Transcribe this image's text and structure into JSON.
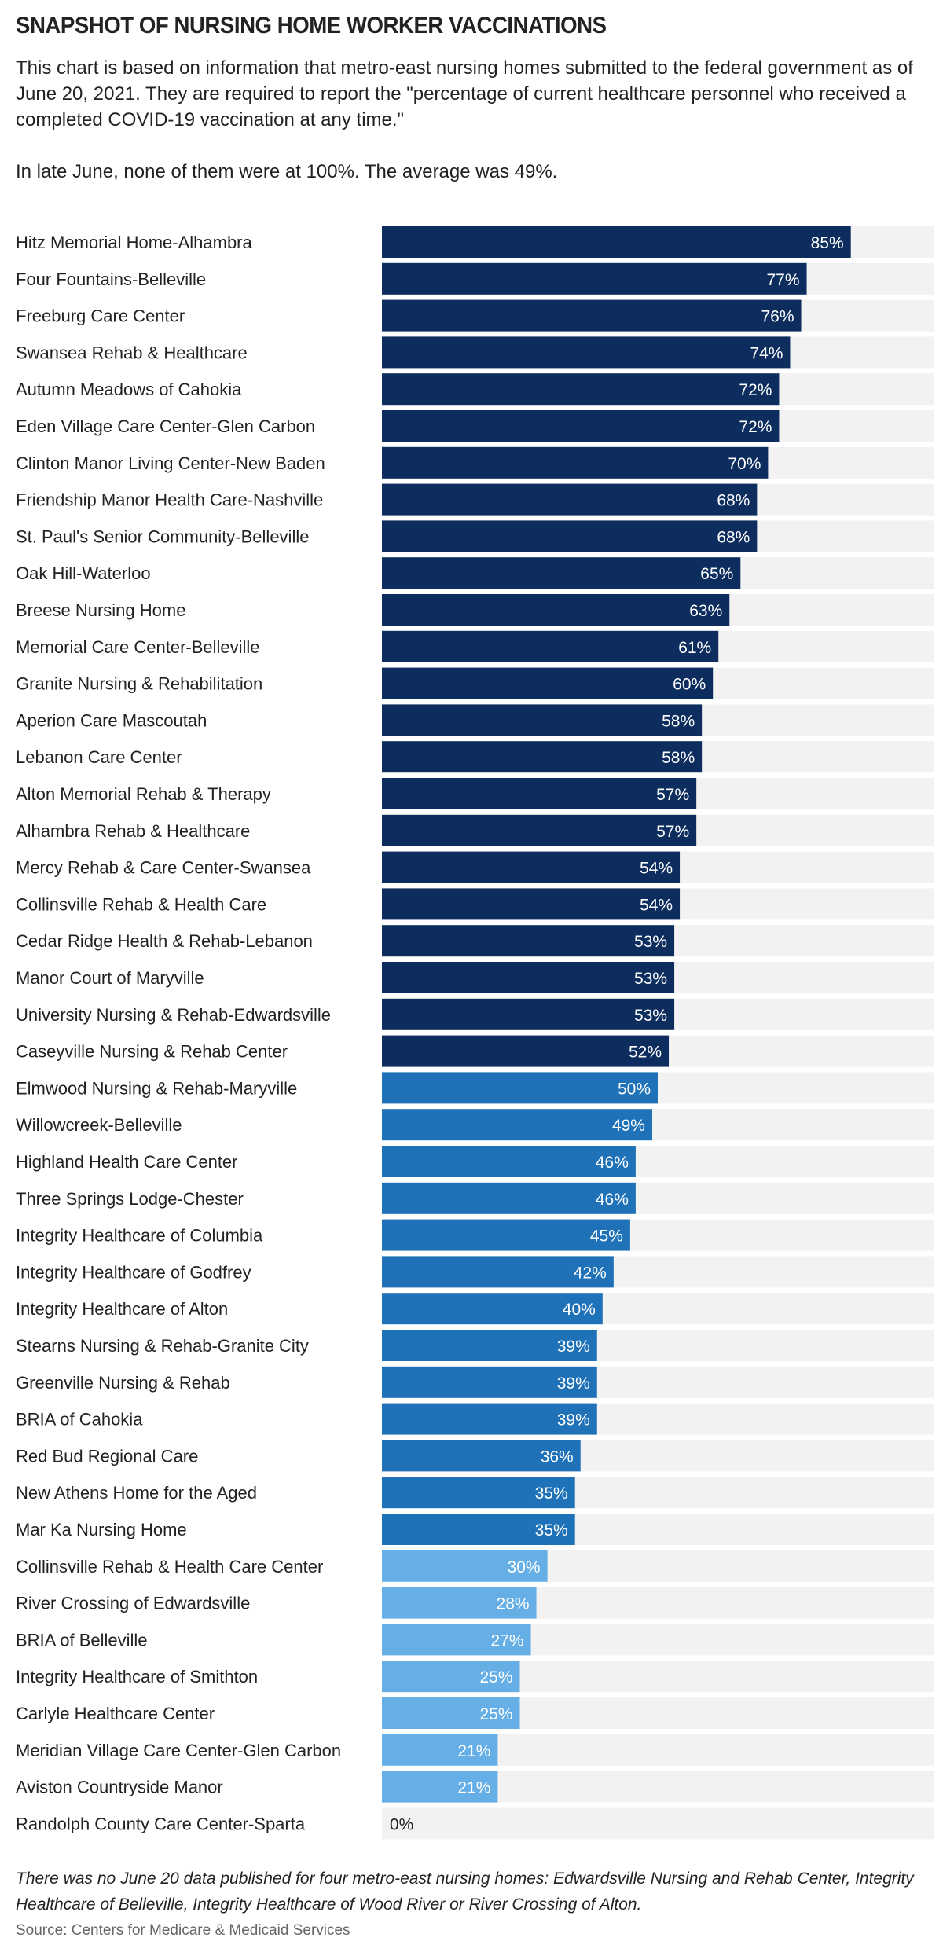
{
  "header": {
    "title": "SNAPSHOT OF NURSING HOME WORKER VACCINATIONS",
    "subtitle_p1": "This chart is based on information that metro-east nursing homes submitted to the federal government as of June 20, 2021. They are required to report the \"percentage of current healthcare personnel who received a completed COVID-19 vaccination at any time.\"",
    "subtitle_p2": "In late June, none of them were at 100%. The average was 49%."
  },
  "footer": {
    "note": "There was no June 20 data published for four metro-east nursing homes: Edwardsville Nursing and Rehab Center, Integrity Healthcare of Belleville, Integrity Healthcare of Wood River or River Crossing of Alton.",
    "source": "Source: Centers for Medicare & Medicaid Services"
  },
  "colors": {
    "high": "#0d2d5e",
    "mid": "#1f72b8",
    "low": "#66aee6",
    "track": "#f2f2f2",
    "label_light": "#ffffff",
    "label_dark": "#222222"
  },
  "chart_data": {
    "type": "bar",
    "orientation": "horizontal",
    "xlim": [
      0,
      100
    ],
    "value_suffix": "%",
    "categories": [
      "Hitz Memorial Home-Alhambra",
      "Four Fountains-Belleville",
      "Freeburg Care Center",
      "Swansea Rehab & Healthcare",
      "Autumn Meadows of Cahokia",
      "Eden Village Care Center-Glen Carbon",
      "Clinton Manor Living Center-New Baden",
      "Friendship Manor Health Care-Nashville",
      "St. Paul's Senior Community-Belleville",
      "Oak Hill-Waterloo",
      "Breese Nursing Home",
      "Memorial Care Center-Belleville",
      "Granite Nursing & Rehabilitation",
      "Aperion Care Mascoutah",
      "Lebanon Care Center",
      "Alton Memorial Rehab & Therapy",
      "Alhambra Rehab & Healthcare",
      "Mercy Rehab & Care Center-Swansea",
      "Collinsville Rehab & Health Care",
      "Cedar Ridge Health & Rehab-Lebanon",
      "Manor Court of Maryville",
      "University Nursing & Rehab-Edwardsville",
      "Caseyville Nursing & Rehab Center",
      "Elmwood Nursing & Rehab-Maryville",
      "Willowcreek-Belleville",
      "Highland Health Care Center",
      "Three Springs Lodge-Chester",
      "Integrity Healthcare of Columbia",
      "Integrity Healthcare of Godfrey",
      "Integrity Healthcare of Alton",
      "Stearns Nursing & Rehab-Granite City",
      "Greenville Nursing & Rehab",
      "BRIA of Cahokia",
      "Red Bud Regional Care",
      "New Athens Home for the Aged",
      "Mar Ka Nursing Home",
      "Collinsville Rehab & Health Care Center",
      "River Crossing of Edwardsville",
      "BRIA of Belleville",
      "Integrity Healthcare of Smithton",
      "Carlyle Healthcare Center",
      "Meridian Village Care Center-Glen Carbon",
      "Aviston Countryside Manor",
      "Randolph County Care Center-Sparta"
    ],
    "values": [
      85,
      77,
      76,
      74,
      72,
      72,
      70,
      68,
      68,
      65,
      63,
      61,
      60,
      58,
      58,
      57,
      57,
      54,
      54,
      53,
      53,
      53,
      52,
      50,
      49,
      46,
      46,
      45,
      42,
      40,
      39,
      39,
      39,
      36,
      35,
      35,
      30,
      28,
      27,
      25,
      25,
      21,
      21,
      0
    ]
  }
}
